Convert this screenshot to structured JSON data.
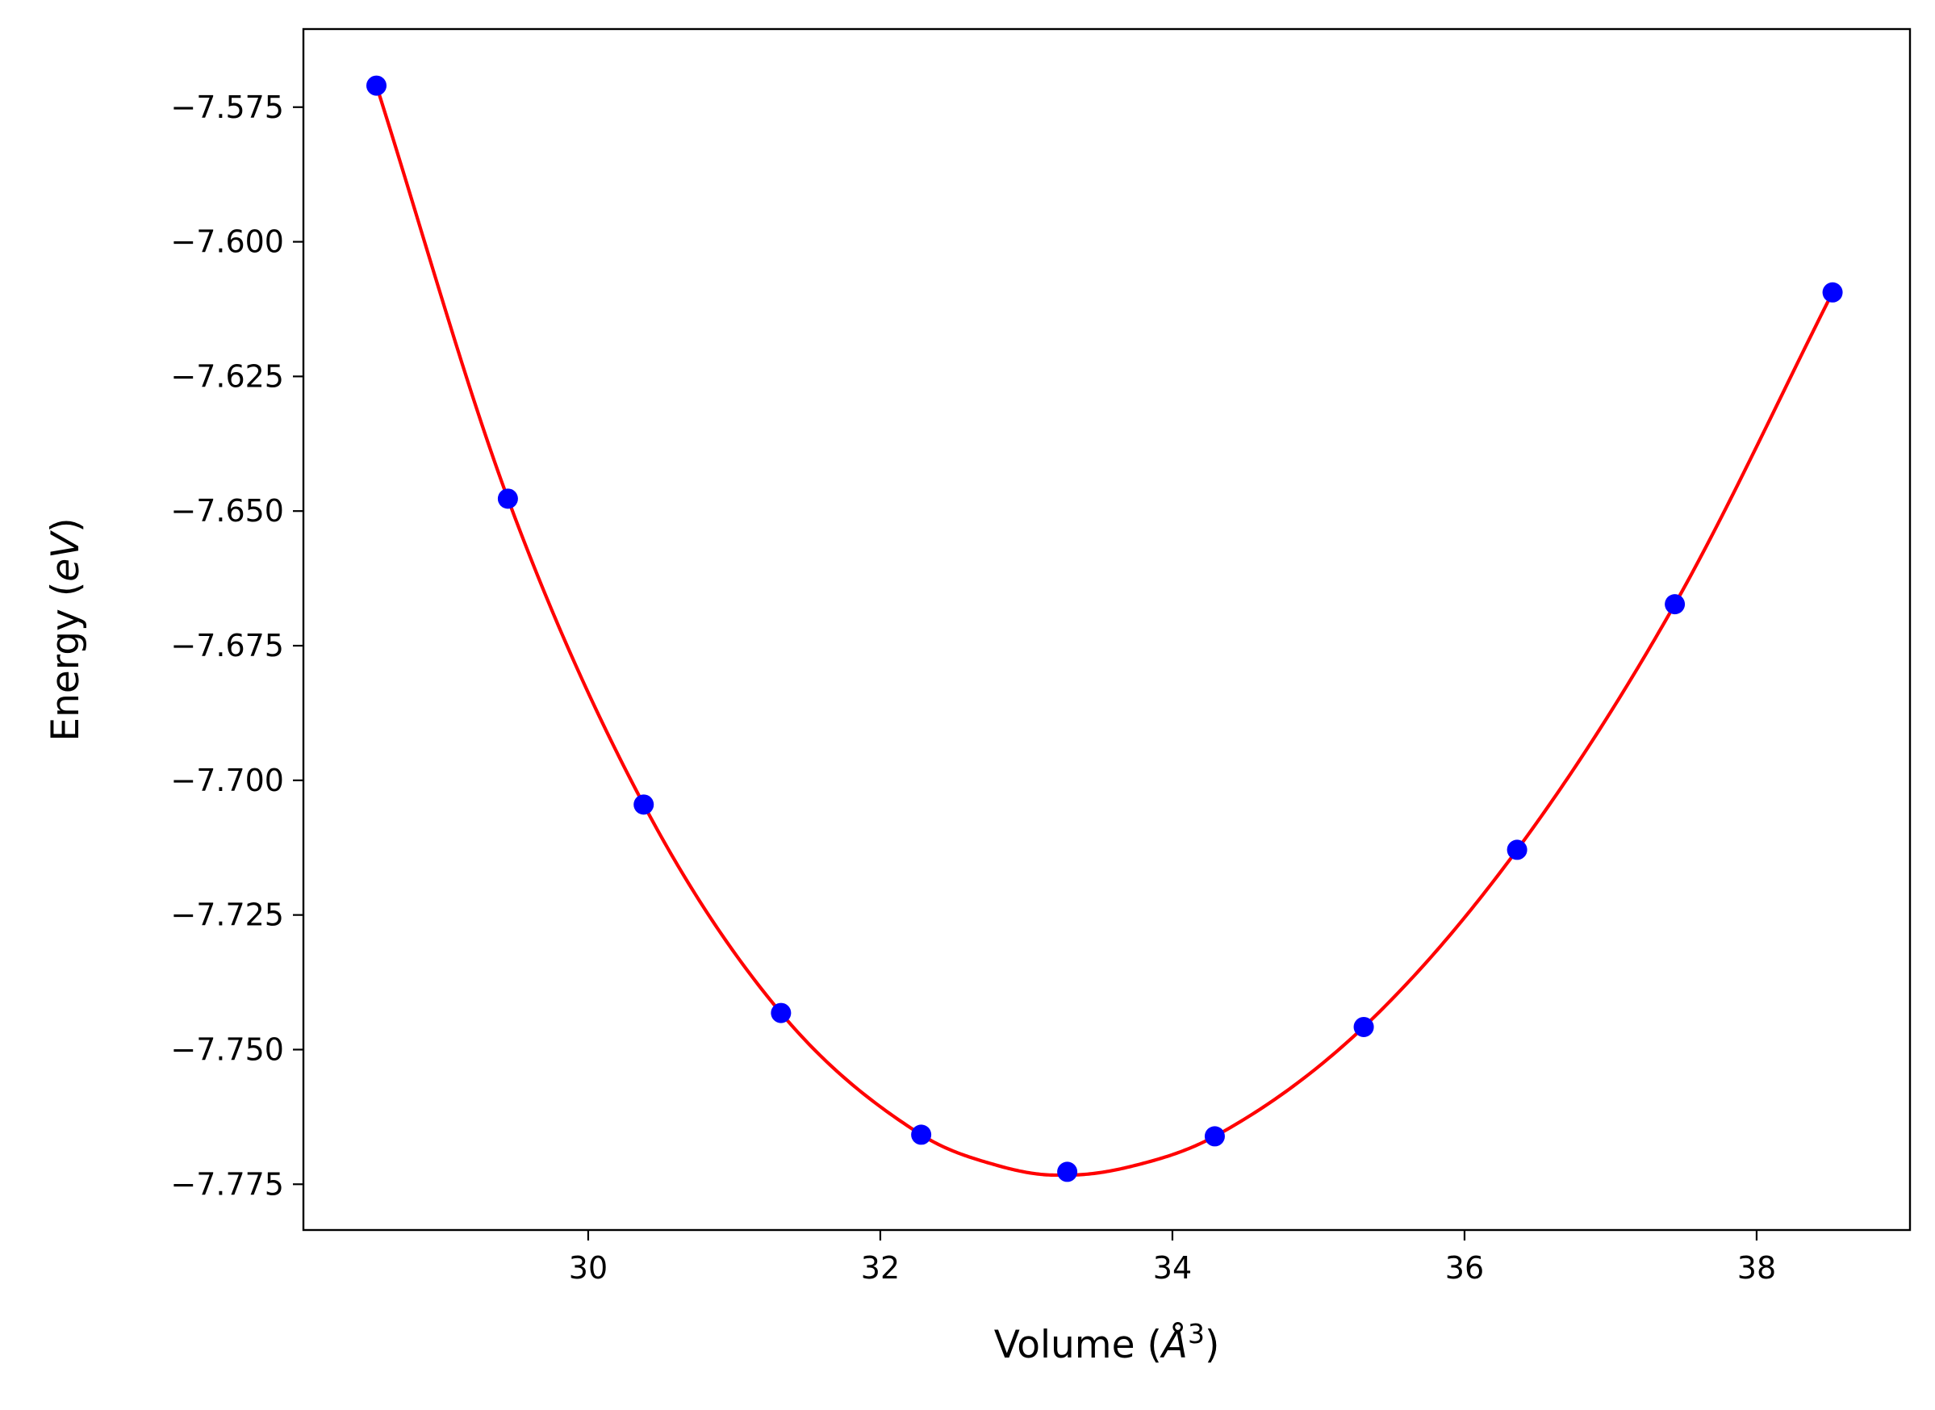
{
  "chart_data": {
    "type": "line",
    "title": "",
    "xlabel": {
      "prefix": "Volume (",
      "symbol": "Å",
      "superscript": "3",
      "suffix": ")"
    },
    "ylabel": {
      "prefix": "Energy (",
      "unit": "eV",
      "suffix": ")"
    },
    "xlim": [
      28.05,
      39.05
    ],
    "ylim": [
      -7.7835,
      -7.5605
    ],
    "xticks": [
      30,
      32,
      34,
      36,
      38
    ],
    "xtick_labels": [
      "30",
      "32",
      "34",
      "36",
      "38"
    ],
    "yticks": [
      -7.575,
      -7.6,
      -7.625,
      -7.65,
      -7.675,
      -7.7,
      -7.725,
      -7.75,
      -7.775
    ],
    "ytick_labels": [
      "−7.575",
      "−7.600",
      "−7.625",
      "−7.650",
      "−7.675",
      "−7.700",
      "−7.725",
      "−7.750",
      "−7.775"
    ],
    "grid": false,
    "legend": "none",
    "series": [
      {
        "kind": "markers",
        "color": "#0000ff",
        "x": [
          28.55,
          29.45,
          30.38,
          31.32,
          32.28,
          33.28,
          34.29,
          35.31,
          36.36,
          37.44,
          38.52
        ],
        "y": [
          -7.571,
          -7.6477,
          -7.7045,
          -7.7432,
          -7.7658,
          -7.7727,
          -7.7661,
          -7.7458,
          -7.7129,
          -7.6673,
          -7.6094
        ]
      },
      {
        "kind": "fit-curve",
        "color": "#ff0000",
        "x": [
          28.55,
          29.45,
          30.38,
          31.32,
          32.28,
          32.8,
          33.2,
          33.28,
          33.7,
          34.29,
          35.31,
          36.36,
          37.44,
          38.52
        ],
        "y": [
          -7.571,
          -7.6477,
          -7.7045,
          -7.7432,
          -7.7658,
          -7.7715,
          -7.7733,
          -7.7733,
          -7.7718,
          -7.7661,
          -7.7458,
          -7.7129,
          -7.6673,
          -7.6094
        ]
      }
    ]
  }
}
